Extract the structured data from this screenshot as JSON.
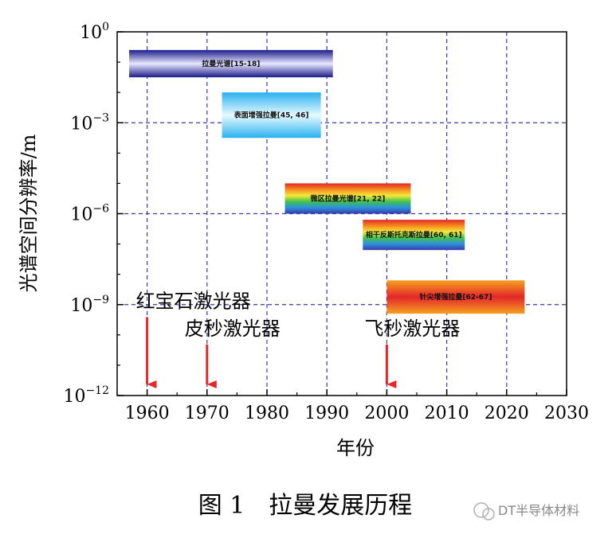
{
  "chart_data": {
    "type": "bar",
    "orientation": "horizontal-range",
    "xlabel": "年份",
    "ylabel": "光谱空间分辨率/m",
    "xlim": [
      1955,
      2030
    ],
    "xticks": [
      1960,
      1970,
      1980,
      1990,
      2000,
      2010,
      2020,
      2030
    ],
    "ylog": true,
    "ylim_exp": [
      -12,
      0
    ],
    "yticks_exp": [
      0,
      -3,
      -6,
      -9,
      -12
    ],
    "ytick_base": "10",
    "grid": true,
    "bars": [
      {
        "label": "拉曼光谱[15-18]",
        "x_start": 1957,
        "x_end": 1991,
        "y_top_exp": -0.6,
        "y_bottom_exp": -1.5,
        "style": "blue"
      },
      {
        "label": "表面增强拉曼[45, 46]",
        "x_start": 1972.5,
        "x_end": 1989,
        "y_top_exp": -2.0,
        "y_bottom_exp": -3.5,
        "style": "cyan"
      },
      {
        "label": "微区拉曼光谱[21, 22]",
        "x_start": 1983,
        "x_end": 2004,
        "y_top_exp": -5.0,
        "y_bottom_exp": -6.0,
        "style": "rainbow"
      },
      {
        "label": "相干反斯托克斯拉曼[60, 61]",
        "x_start": 1996,
        "x_end": 2013,
        "y_top_exp": -6.2,
        "y_bottom_exp": -7.2,
        "style": "rainbow"
      },
      {
        "label": "针尖增强拉曼[62-67]",
        "x_start": 2000,
        "x_end": 2023,
        "y_top_exp": -8.2,
        "y_bottom_exp": -9.3,
        "style": "orange"
      }
    ],
    "annotations": [
      {
        "text": "红宝石激光器",
        "x": 1960,
        "text_y_exp": -9.1
      },
      {
        "text": "皮秒激光器",
        "x": 1970,
        "text_y_exp": -10.0
      },
      {
        "text": "飞秒激光器",
        "x": 2000,
        "text_y_exp": -10.0
      }
    ]
  },
  "caption": "图 1　拉曼发展历程",
  "watermark": "DT半导体材料",
  "colors": {
    "grid": "#3a3aa8",
    "arrow": "#e8262a",
    "axis": "#000000"
  }
}
